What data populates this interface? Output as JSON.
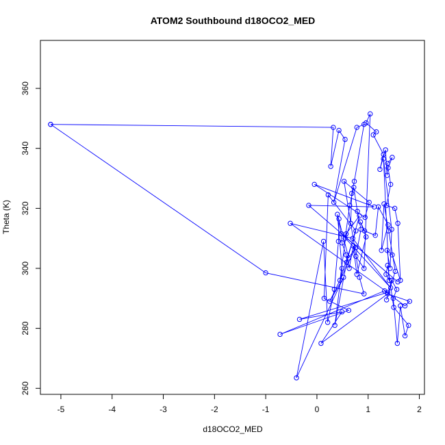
{
  "chart_data": {
    "type": "line",
    "title": "ATOM2 Southbound d18OCO2_MED",
    "xlabel": "d18OCO2_MED",
    "ylabel": "Theta (K)",
    "xlim": [
      -5.4,
      2.1
    ],
    "ylim": [
      258,
      376
    ],
    "xticks": [
      -5,
      -4,
      -3,
      -2,
      -1,
      0,
      1,
      2
    ],
    "yticks": [
      260,
      280,
      300,
      320,
      340,
      360
    ],
    "grid": false,
    "legend": "none",
    "markers": "open-circle",
    "color": "#0000ff",
    "series": [
      {
        "x": [
          -5.2,
          0.32,
          0.27,
          0.43,
          0.55,
          0.33,
          0.78,
          0.92,
          0.73,
          0.68,
          0.66,
          0.55,
          0.64,
          0.72,
          0.79,
          0.86,
          0.76,
          0.92,
          1.04,
          0.96,
          1.16,
          1.1,
          1.3,
          1.23,
          1.34,
          1.37,
          1.38,
          1.47,
          1.39,
          1.44,
          1.36,
          1.52,
          1.58,
          1.63,
          1.47,
          1.37,
          1.43,
          1.46,
          1.3,
          1.41,
          1.35,
          1.38,
          1.5,
          1.79,
          1.72,
          1.63,
          1.57,
          1.49,
          1.56,
          1.46,
          1.36,
          1.53,
          1.4,
          1.31,
          1.26,
          1.39,
          1.2,
          1.14,
          0.93,
          0.85,
          0.96,
          0.78,
          0.71,
          0.63,
          0.57,
          0.49,
          0.43,
          0.42,
          0.34,
          0.21,
          0.13,
          -0.4,
          0.52,
          0.25,
          0.76,
          0.62,
          0.4,
          0.49,
          0.35,
          0.58,
          0.83,
          0.57,
          0.45,
          0.76,
          0.22,
          0.14,
          0.62,
          -0.72,
          1.32,
          1.72,
          1.81,
          1.38,
          0.08,
          0.49,
          -0.34,
          1.38,
          -0.52,
          0.7,
          1.44,
          0.48,
          1.58,
          -0.16,
          1.12,
          -0.05,
          0.94,
          1.02,
          0.53,
          0.83,
          0.92,
          -1.0,
          -5.2
        ],
        "y": [
          348,
          347,
          334,
          346,
          343,
          322,
          347,
          348,
          329,
          325,
          315,
          310,
          321,
          327,
          319,
          313,
          304,
          300,
          351.5,
          348.5,
          345.5,
          344.5,
          338,
          333,
          339.5,
          331,
          335,
          337,
          333.5,
          328,
          321,
          320,
          315,
          296,
          304.5,
          306,
          300,
          313,
          336.5,
          296,
          298,
          301,
          287,
          281,
          277.5,
          287.5,
          275,
          290,
          293,
          296,
          289.5,
          299,
          312.5,
          321.5,
          306,
          314.5,
          320.5,
          311,
          312.5,
          315.5,
          310.5,
          298,
          307.5,
          300,
          304.5,
          308.5,
          316.5,
          309,
          293,
          282,
          309,
          263.5,
          297,
          289,
          307,
          303.5,
          318,
          300,
          281,
          302,
          317.5,
          311.5,
          296,
          312.5,
          324.5,
          290,
          286,
          278,
          292.5,
          287.5,
          289,
          291.5,
          275,
          285.5,
          283,
          292,
          315,
          310,
          293.5,
          311.5,
          295.5,
          321,
          320.5,
          328,
          317,
          322,
          329,
          297,
          291.5,
          298.5,
          348
        ]
      }
    ]
  }
}
